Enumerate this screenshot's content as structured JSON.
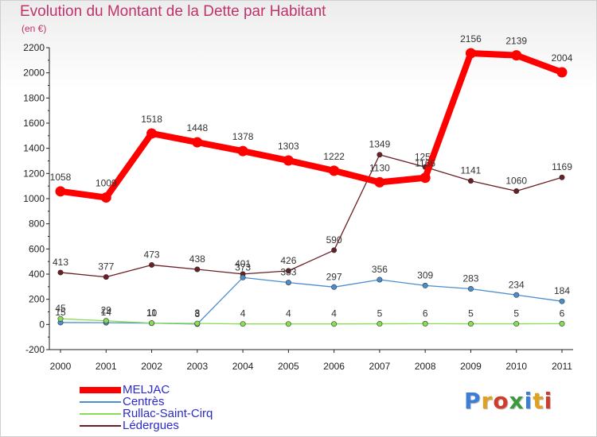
{
  "title": "Evolution du Montant de la Dette par Habitant",
  "unit": "(en €)",
  "logo_text": "Proxiti",
  "logo_colors": [
    "#3b7dd8",
    "#e0a020",
    "#d03c2c",
    "#3b9a3b",
    "#3b7dd8",
    "#e0a020",
    "#d03c2c"
  ],
  "chart_data": {
    "type": "line",
    "title": "Evolution du Montant de la Dette par Habitant",
    "subtitle": "(en €)",
    "x": [
      "2000",
      "2001",
      "2002",
      "2003",
      "2004",
      "2005",
      "2006",
      "2007",
      "2008",
      "2009",
      "2010",
      "2011"
    ],
    "ylim": [
      -200,
      2200
    ],
    "yticks": [
      -200,
      0,
      200,
      400,
      600,
      800,
      1000,
      1200,
      1400,
      1600,
      1800,
      2000,
      2200
    ],
    "grid": false,
    "legend_position": "bottom-left",
    "series": [
      {
        "name": "Lédergues",
        "color": "#6b1f25",
        "values": [
          413,
          377,
          473,
          438,
          401,
          426,
          590,
          1349,
          1251,
          1141,
          1060,
          1169
        ],
        "labels": [
          "413",
          "377",
          "473",
          "438",
          "401",
          "426",
          "590",
          "1349",
          "1251",
          "1141",
          "1060",
          "1169"
        ]
      },
      {
        "name": "Centrès",
        "color": "#4a8ed0",
        "values": [
          15,
          14,
          10,
          3,
          373,
          333,
          297,
          356,
          309,
          283,
          234,
          184
        ],
        "labels": [
          "15",
          "14",
          "10",
          "3",
          "373",
          "333",
          "297",
          "356",
          "309",
          "283",
          "234",
          "184"
        ]
      },
      {
        "name": "Rullac-Saint-Cirq",
        "color": "#88dd55",
        "values": [
          45,
          29,
          11,
          8,
          4,
          4,
          4,
          5,
          6,
          5,
          5,
          6
        ],
        "labels": [
          "45",
          "29",
          "11",
          "8",
          "4",
          "4",
          "4",
          "5",
          "6",
          "5",
          "5",
          "6"
        ]
      },
      {
        "name": "MELJAC",
        "color": "#ff0000",
        "values": [
          1058,
          1009,
          1518,
          1448,
          1378,
          1303,
          1222,
          1130,
          1166,
          2156,
          2139,
          2004
        ],
        "labels": [
          "1058",
          "1009",
          "1518",
          "1448",
          "1378",
          "1303",
          "1222",
          "1130",
          "1166",
          "2156",
          "2139",
          "2004"
        ]
      }
    ],
    "legend": [
      "MELJAC",
      "Centrès",
      "Rullac-Saint-Cirq",
      "Lédergues"
    ]
  }
}
